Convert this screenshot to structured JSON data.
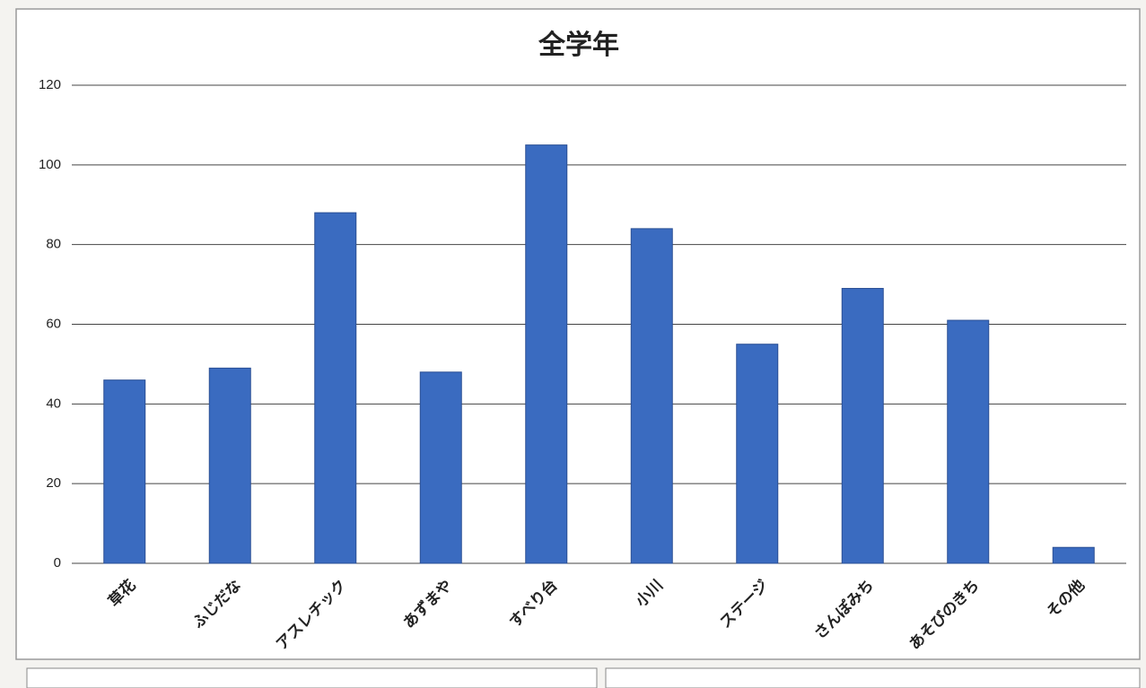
{
  "chart_data": {
    "type": "bar",
    "title": "全学年",
    "categories": [
      "草花",
      "ふじだな",
      "アスレチック",
      "あずまや",
      "すべり台",
      "小川",
      "ステージ",
      "さんぽみち",
      "あそびのきち",
      "その他"
    ],
    "values": [
      46,
      49,
      88,
      48,
      105,
      84,
      55,
      69,
      61,
      4
    ],
    "color": "#3a6bc0",
    "ylim": [
      0,
      120
    ],
    "yticks": [
      0,
      20,
      40,
      60,
      80,
      100,
      120
    ],
    "grid": true
  }
}
